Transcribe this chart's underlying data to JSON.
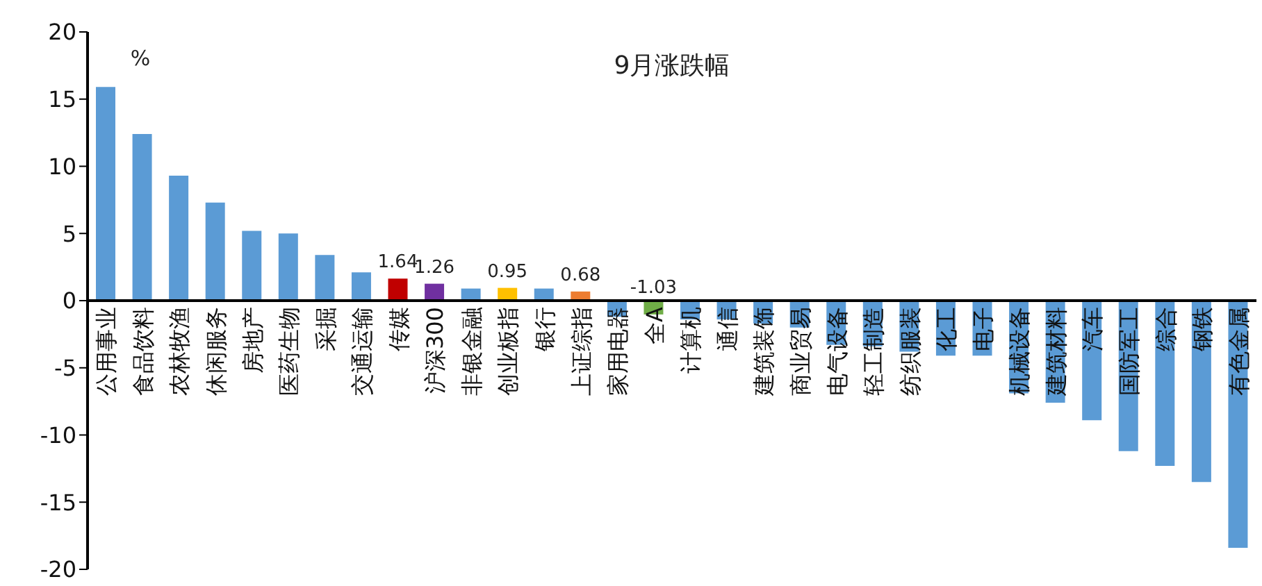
{
  "chart_data": {
    "type": "bar",
    "title": "9月涨跌幅",
    "ylabel": "%",
    "categories": [
      "公用事业",
      "食品饮料",
      "农林牧渔",
      "休闲服务",
      "房地产",
      "医药生物",
      "采掘",
      "交通运输",
      "传媒",
      "沪深300",
      "非银金融",
      "创业板指",
      "银行",
      "上证综指",
      "家用电器",
      "全A",
      "计算机",
      "通信",
      "建筑装饰",
      "商业贸易",
      "电气设备",
      "轻工制造",
      "纺织服装",
      "化工",
      "电子",
      "机械设备",
      "建筑材料",
      "汽车",
      "国防军工",
      "综合",
      "钢铁",
      "有色金属"
    ],
    "values": [
      15.9,
      12.4,
      9.3,
      7.3,
      5.2,
      5.0,
      3.4,
      2.1,
      1.64,
      1.26,
      0.9,
      0.95,
      0.9,
      0.68,
      -1.2,
      -1.03,
      -1.4,
      -1.4,
      -1.7,
      -2.0,
      -3.3,
      -3.4,
      -3.8,
      -4.1,
      -4.1,
      -6.9,
      -7.6,
      -8.9,
      -11.2,
      -12.3,
      -13.5,
      -18.4
    ],
    "colors": [
      "#5b9bd5",
      "#5b9bd5",
      "#5b9bd5",
      "#5b9bd5",
      "#5b9bd5",
      "#5b9bd5",
      "#5b9bd5",
      "#5b9bd5",
      "#c00000",
      "#7030a0",
      "#5b9bd5",
      "#ffc000",
      "#5b9bd5",
      "#ed7d31",
      "#5b9bd5",
      "#70ad47",
      "#5b9bd5",
      "#5b9bd5",
      "#5b9bd5",
      "#5b9bd5",
      "#5b9bd5",
      "#5b9bd5",
      "#5b9bd5",
      "#5b9bd5",
      "#5b9bd5",
      "#5b9bd5",
      "#5b9bd5",
      "#5b9bd5",
      "#5b9bd5",
      "#5b9bd5",
      "#5b9bd5",
      "#5b9bd5"
    ],
    "value_labels": [
      null,
      null,
      null,
      null,
      null,
      null,
      null,
      null,
      "1.64",
      "1.26",
      null,
      "0.95",
      null,
      "0.68",
      null,
      "-1.03",
      null,
      null,
      null,
      null,
      null,
      null,
      null,
      null,
      null,
      null,
      null,
      null,
      null,
      null,
      null,
      null
    ],
    "ylim": [
      -20,
      20
    ],
    "yticks": [
      -20,
      -15,
      -10,
      -5,
      0,
      5,
      10,
      15,
      20
    ],
    "grid": false
  }
}
